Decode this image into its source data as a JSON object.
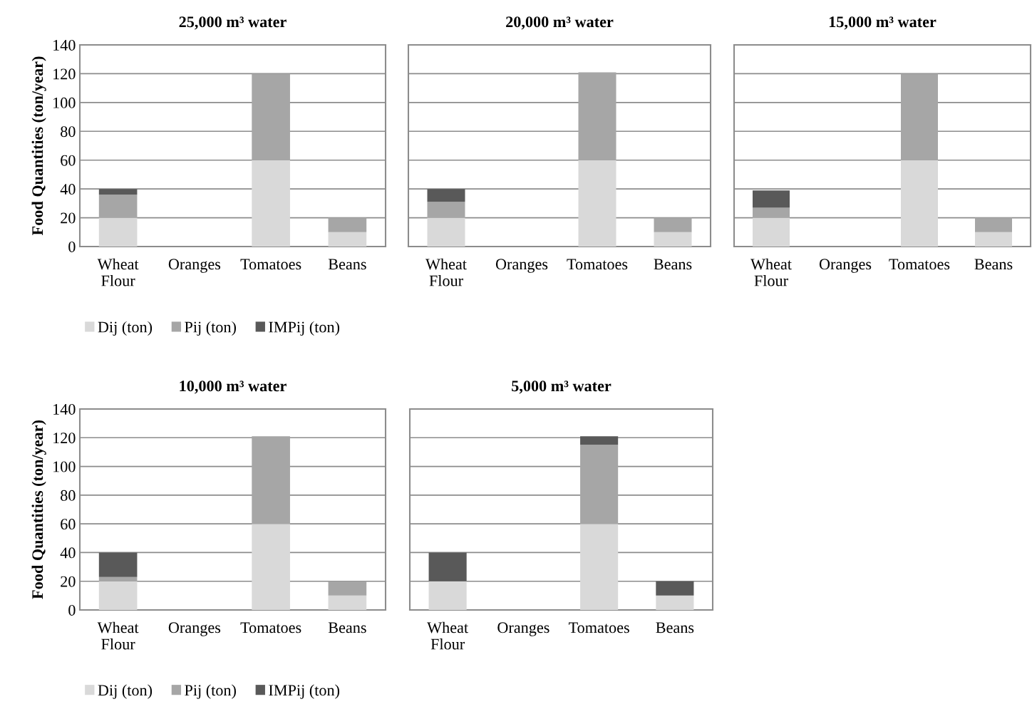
{
  "chart_data": [
    {
      "type": "bar",
      "stacked": true,
      "title": "25,000 m³ water",
      "ylabel": "Food Quantities (ton/year)",
      "categories": [
        "Wheat Flour",
        "Oranges",
        "Tomatoes",
        "Beans"
      ],
      "ylim": [
        0,
        140
      ],
      "yticks": [
        0,
        20,
        40,
        60,
        80,
        100,
        120,
        140
      ],
      "grid": "y",
      "legend": "bottom",
      "series": [
        {
          "name": "Dij (ton)",
          "color": "#d9d9d9",
          "values": [
            20,
            0,
            60,
            10
          ]
        },
        {
          "name": "Pij (ton)",
          "color": "#a6a6a6",
          "values": [
            16,
            0,
            60,
            10
          ]
        },
        {
          "name": "IMPij (ton)",
          "color": "#595959",
          "values": [
            4,
            0,
            0,
            0
          ]
        }
      ]
    },
    {
      "type": "bar",
      "stacked": true,
      "title": "20,000 m³ water",
      "categories": [
        "Wheat Flour",
        "Oranges",
        "Tomatoes",
        "Beans"
      ],
      "ylim": [
        0,
        140
      ],
      "yticks": [
        0,
        20,
        40,
        60,
        80,
        100,
        120,
        140
      ],
      "grid": "y",
      "tick_labels": "x",
      "series": [
        {
          "color": "#d9d9d9",
          "values": [
            20,
            0,
            60,
            10
          ]
        },
        {
          "color": "#a6a6a6",
          "values": [
            11,
            0,
            61,
            10
          ]
        },
        {
          "color": "#595959",
          "values": [
            9,
            0,
            0,
            0
          ]
        }
      ]
    },
    {
      "type": "bar",
      "stacked": true,
      "title": "15,000 m³ water",
      "categories": [
        "Wheat Flour",
        "Oranges",
        "Tomatoes",
        "Beans"
      ],
      "ylim": [
        0,
        140
      ],
      "yticks": [
        0,
        20,
        40,
        60,
        80,
        100,
        120,
        140
      ],
      "grid": "y",
      "tick_labels": "x",
      "series": [
        {
          "color": "#d9d9d9",
          "values": [
            20,
            0,
            60,
            10
          ]
        },
        {
          "color": "#a6a6a6",
          "values": [
            7,
            0,
            60,
            10
          ]
        },
        {
          "color": "#595959",
          "values": [
            12,
            0,
            0,
            0
          ]
        }
      ]
    },
    {
      "type": "bar",
      "stacked": true,
      "title": "10,000 m³ water",
      "ylabel": "Food Quantities (ton/year)",
      "categories": [
        "Wheat Flour",
        "Oranges",
        "Tomatoes",
        "Beans"
      ],
      "ylim": [
        0,
        140
      ],
      "yticks": [
        0,
        20,
        40,
        60,
        80,
        100,
        120,
        140
      ],
      "grid": "y",
      "legend": "bottom",
      "series": [
        {
          "name": "Dij (ton)",
          "color": "#d9d9d9",
          "values": [
            20,
            0,
            60,
            10
          ]
        },
        {
          "name": "Pij (ton)",
          "color": "#a6a6a6",
          "values": [
            3,
            0,
            61,
            10
          ]
        },
        {
          "name": "IMPij (ton)",
          "color": "#595959",
          "values": [
            17,
            0,
            0,
            0
          ]
        }
      ]
    },
    {
      "type": "bar",
      "stacked": true,
      "title": "5,000 m³ water",
      "categories": [
        "Wheat Flour",
        "Oranges",
        "Tomatoes",
        "Beans"
      ],
      "ylim": [
        0,
        140
      ],
      "yticks": [
        0,
        20,
        40,
        60,
        80,
        100,
        120,
        140
      ],
      "grid": "y",
      "tick_labels": "x",
      "series": [
        {
          "color": "#d9d9d9",
          "values": [
            20,
            0,
            60,
            10
          ]
        },
        {
          "color": "#a6a6a6",
          "values": [
            0,
            0,
            55,
            0
          ]
        },
        {
          "color": "#595959",
          "values": [
            20,
            0,
            6,
            10
          ]
        }
      ]
    }
  ]
}
